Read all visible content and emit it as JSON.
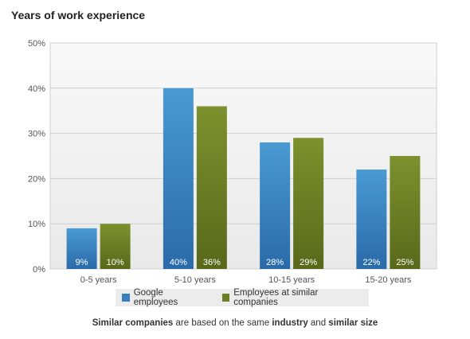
{
  "chart_data": {
    "type": "bar",
    "title": "Years of work experience",
    "categories": [
      "0-5 years",
      "5-10 years",
      "10-15 years",
      "15-20 years"
    ],
    "series": [
      {
        "name": "Google employees",
        "values": [
          9,
          40,
          28,
          22
        ],
        "labels": [
          "9%",
          "40%",
          "28%",
          "22%"
        ],
        "color": "#3a7fbd"
      },
      {
        "name": "Employees at similar companies",
        "values": [
          10,
          36,
          29,
          25
        ],
        "labels": [
          "10%",
          "36%",
          "29%",
          "25%"
        ],
        "color": "#6b7f24"
      }
    ],
    "ylim": [
      0,
      50
    ],
    "yticks": [
      "0%",
      "10%",
      "20%",
      "30%",
      "40%",
      "50%"
    ],
    "grid": true,
    "legend": "bottom"
  },
  "footnote": {
    "p1": "Similar companies",
    "p2": " are based on the same ",
    "p3": "industry",
    "p4": " and ",
    "p5": "similar size"
  }
}
